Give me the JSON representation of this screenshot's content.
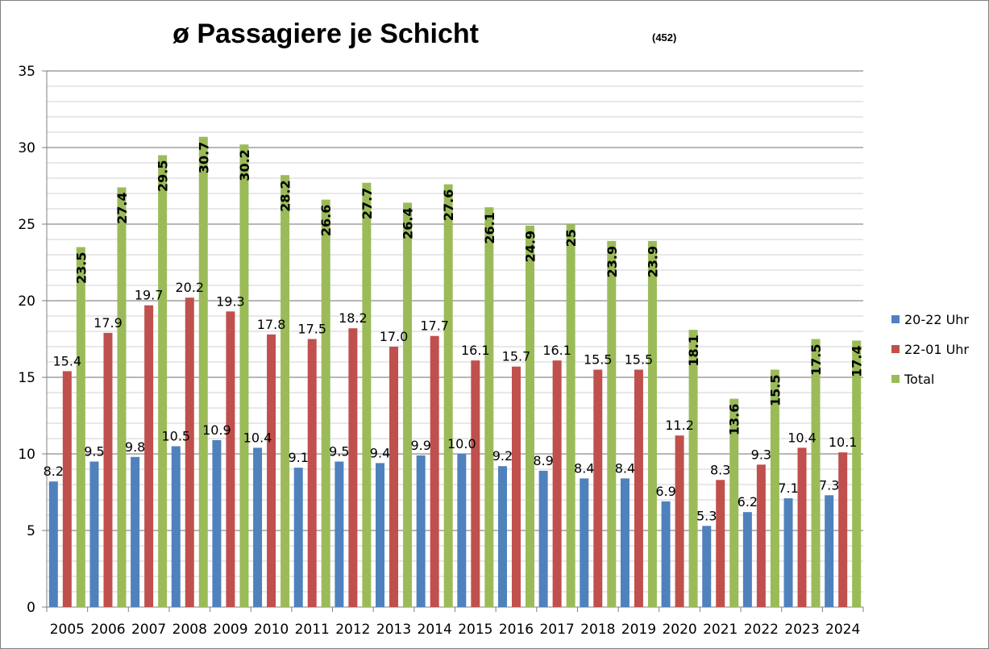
{
  "chart_data": {
    "type": "bar",
    "title": "ø Passagiere je Schicht",
    "subtitle": "(452)",
    "xlabel": "",
    "ylabel": "",
    "ylim": [
      0,
      35
    ],
    "y_major_step": 5,
    "y_minor_step": 1,
    "grid": true,
    "legend_position": "right",
    "categories": [
      "2005",
      "2006",
      "2007",
      "2008",
      "2009",
      "2010",
      "2011",
      "2012",
      "2013",
      "2014",
      "2015",
      "2016",
      "2017",
      "2018",
      "2019",
      "2020",
      "2021",
      "2022",
      "2023",
      "2024"
    ],
    "series": [
      {
        "name": "20-22 Uhr",
        "color": "#4F81BD",
        "values": [
          8.2,
          9.5,
          9.8,
          10.5,
          10.9,
          10.4,
          9.1,
          9.5,
          9.4,
          9.9,
          10.0,
          9.2,
          8.9,
          8.4,
          8.4,
          6.9,
          5.3,
          6.2,
          7.1,
          7.3
        ],
        "labels": [
          "8.2",
          "9.5",
          "9.8",
          "10.5",
          "10.9",
          "10.4",
          "9.1",
          "9.5",
          "9.4",
          "9.9",
          "10.0",
          "9.2",
          "8.9",
          "8.4",
          "8.4",
          "6.9",
          "5.3",
          "6.2",
          "7.1",
          "7.3"
        ]
      },
      {
        "name": "22-01 Uhr",
        "color": "#C0504D",
        "values": [
          15.4,
          17.9,
          19.7,
          20.2,
          19.3,
          17.8,
          17.5,
          18.2,
          17.0,
          17.7,
          16.1,
          15.7,
          16.1,
          15.5,
          15.5,
          11.2,
          8.3,
          9.3,
          10.4,
          10.1
        ],
        "labels": [
          "15.4",
          "17.9",
          "19.7",
          "20.2",
          "19.3",
          "17.8",
          "17.5",
          "18.2",
          "17.0",
          "17.7",
          "16.1",
          "15.7",
          "16.1",
          "15.5",
          "15.5",
          "11.2",
          "8.3",
          "9.3",
          "10.4",
          "10.1"
        ]
      },
      {
        "name": "Total",
        "color": "#9BBB59",
        "values": [
          23.5,
          27.4,
          29.5,
          30.7,
          30.2,
          28.2,
          26.6,
          27.7,
          26.4,
          27.6,
          26.1,
          24.9,
          25,
          23.9,
          23.9,
          18.1,
          13.6,
          15.5,
          17.5,
          17.4
        ],
        "labels": [
          "23.5",
          "27.4",
          "29.5",
          "30.7",
          "30.2",
          "28.2",
          "26.6",
          "27.7",
          "26.4",
          "27.6",
          "26.1",
          "24.9",
          "25",
          "23.9",
          "23.9",
          "18.1",
          "13.6",
          "15.5",
          "17.5",
          "17.4"
        ]
      }
    ]
  }
}
